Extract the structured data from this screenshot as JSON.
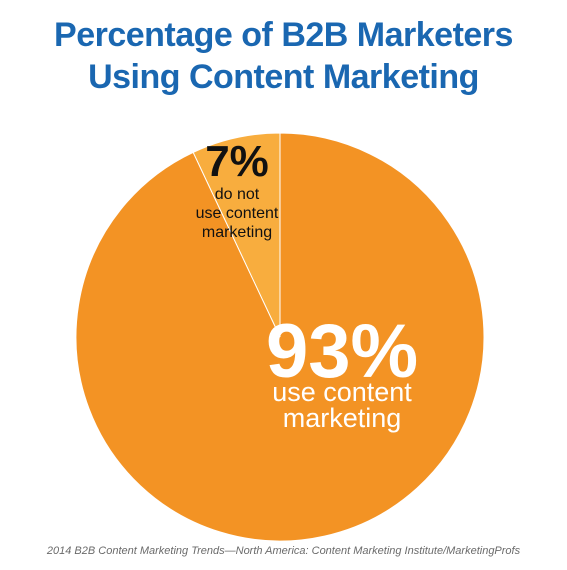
{
  "chart_data": {
    "type": "pie",
    "title": [
      "Percentage of B2B Marketers",
      "Using Content Marketing"
    ],
    "slices": [
      {
        "value": 93,
        "value_label": "93%",
        "label_lines": [
          "use content",
          "marketing"
        ],
        "color": "#f39324"
      },
      {
        "value": 7,
        "value_label": "7%",
        "label_lines": [
          "do not",
          "use content",
          "marketing"
        ],
        "color": "#f8ad3e"
      }
    ],
    "legend": "none",
    "source": "2014 B2B Content Marketing Trends—North America: Content Marketing Institute/MarketingProfs"
  },
  "colors": {
    "title": "#1a67b1",
    "slice_border": "#ffffff"
  }
}
